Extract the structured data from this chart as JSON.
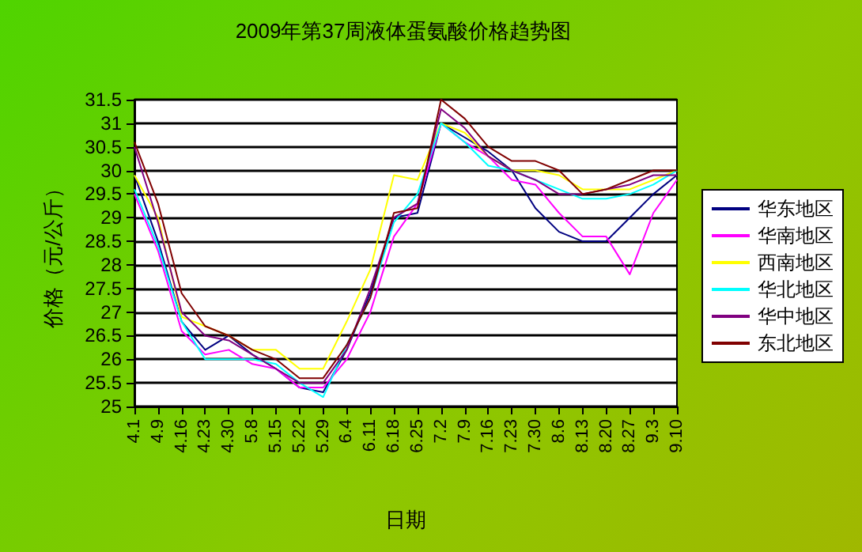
{
  "chart_data": {
    "type": "line",
    "title": "2009年第37周液体蛋氨酸价格趋势图",
    "xlabel": "日期",
    "ylabel": "价格（元/公斤）",
    "categories": [
      "4.1",
      "4.9",
      "4.16",
      "4.23",
      "4.30",
      "5.8",
      "5.15",
      "5.22",
      "5.29",
      "6.4",
      "6.11",
      "6.18",
      "6.25",
      "7.2",
      "7.9",
      "7.16",
      "7.23",
      "7.30",
      "8.6",
      "8.13",
      "8.20",
      "8.27",
      "9.3",
      "9.10"
    ],
    "series": [
      {
        "name": "华东地区",
        "color": "#000080",
        "values": [
          29.9,
          28.5,
          26.8,
          26.2,
          26.5,
          26.1,
          25.8,
          25.4,
          25.3,
          26.2,
          27.4,
          29.0,
          29.1,
          31.0,
          30.7,
          30.4,
          30.0,
          29.2,
          28.7,
          28.5,
          28.5,
          29.0,
          29.5,
          29.9
        ]
      },
      {
        "name": "华南地区",
        "color": "#ff00ff",
        "values": [
          29.5,
          28.3,
          26.6,
          26.1,
          26.2,
          25.9,
          25.8,
          25.4,
          25.4,
          26.0,
          27.0,
          28.6,
          29.3,
          31.0,
          30.6,
          30.3,
          29.8,
          29.7,
          29.1,
          28.6,
          28.6,
          27.8,
          29.1,
          29.8
        ]
      },
      {
        "name": "西南地区",
        "color": "#ffff00",
        "values": [
          29.9,
          29.0,
          26.9,
          26.7,
          26.5,
          26.2,
          26.2,
          25.8,
          25.8,
          26.8,
          27.9,
          29.9,
          29.8,
          31.0,
          30.8,
          30.3,
          30.0,
          30.0,
          29.9,
          29.6,
          29.6,
          29.6,
          29.8,
          30.0
        ]
      },
      {
        "name": "华北地区",
        "color": "#00ffff",
        "values": [
          29.6,
          28.4,
          26.8,
          26.0,
          26.0,
          26.0,
          25.9,
          25.5,
          25.2,
          26.3,
          27.3,
          28.9,
          29.5,
          31.0,
          30.6,
          30.1,
          30.0,
          29.8,
          29.6,
          29.4,
          29.4,
          29.5,
          29.7,
          30.0
        ]
      },
      {
        "name": "华中地区",
        "color": "#800080",
        "values": [
          30.5,
          28.9,
          27.0,
          26.5,
          26.4,
          26.1,
          25.8,
          25.5,
          25.5,
          26.2,
          27.5,
          29.0,
          29.3,
          31.3,
          30.9,
          30.3,
          30.0,
          29.8,
          29.5,
          29.5,
          29.6,
          29.7,
          29.9,
          29.9
        ]
      },
      {
        "name": "东北地区",
        "color": "#800000",
        "values": [
          30.6,
          29.3,
          27.4,
          26.7,
          26.5,
          26.2,
          26.0,
          25.6,
          25.6,
          26.3,
          27.3,
          29.1,
          29.2,
          31.5,
          31.1,
          30.5,
          30.2,
          30.2,
          30.0,
          29.5,
          29.6,
          29.8,
          30.0,
          30.0
        ]
      }
    ],
    "ylim": [
      25,
      31.5
    ],
    "yticks": [
      25,
      25.5,
      26,
      26.5,
      27,
      27.5,
      28,
      28.5,
      29,
      29.5,
      30,
      30.5,
      31,
      31.5
    ],
    "grid": "y",
    "legend": "right",
    "marker": "none",
    "line_style": "solid"
  }
}
